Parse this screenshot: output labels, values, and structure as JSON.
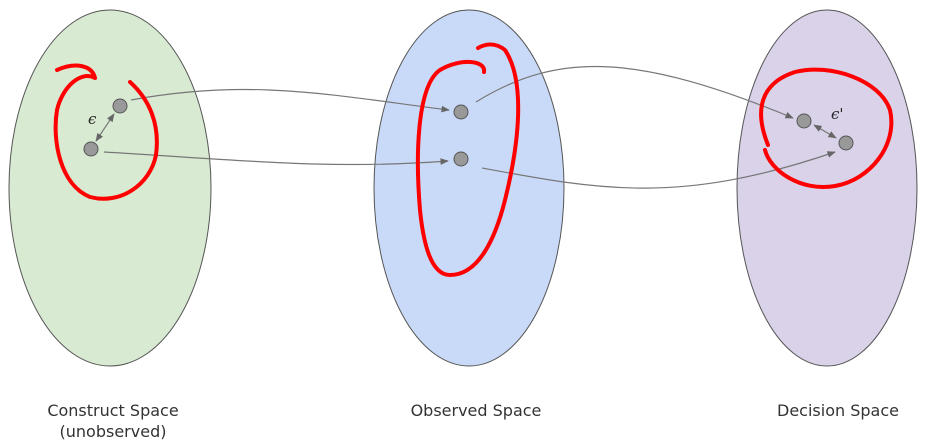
{
  "spaces": [
    {
      "label": "Construct Space",
      "sublabel": "(unobserved)"
    },
    {
      "label": "Observed Space"
    },
    {
      "label": "Decision Space"
    }
  ],
  "annotations": {
    "epsilon": "ϵ",
    "epsilon_prime": "ϵ'"
  }
}
